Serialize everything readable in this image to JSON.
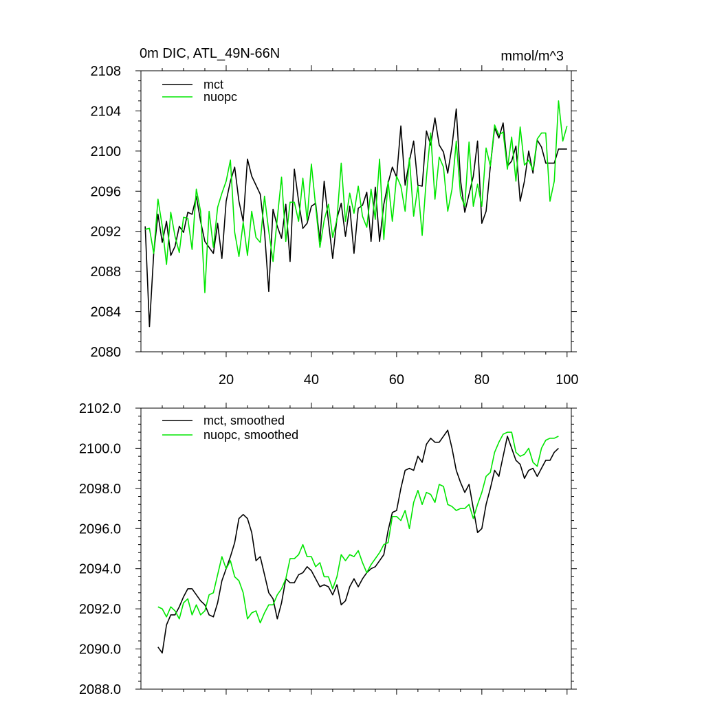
{
  "chart_data": [
    {
      "type": "line",
      "title": "0m DIC, ATL_49N-66N",
      "units": "mmol/m^3",
      "xlabel": "",
      "ylabel": "",
      "xlim": [
        0,
        101
      ],
      "ylim": [
        2080,
        2108
      ],
      "xticks": [
        20,
        40,
        60,
        80,
        100
      ],
      "yticks": [
        2080,
        2084,
        2088,
        2092,
        2096,
        2100,
        2104,
        2108
      ],
      "ytick_labels": [
        "2080",
        "2084",
        "2088",
        "2092",
        "2096",
        "2100",
        "2104",
        "2108"
      ],
      "legend_position": "top-left",
      "series": [
        {
          "name": "mct",
          "color": "#000000",
          "x": [
            1,
            2,
            3,
            4,
            5,
            6,
            7,
            8,
            9,
            10,
            11,
            12,
            13,
            14,
            15,
            16,
            17,
            18,
            19,
            20,
            21,
            22,
            23,
            24,
            25,
            26,
            27,
            28,
            29,
            30,
            31,
            32,
            33,
            34,
            35,
            36,
            37,
            38,
            39,
            40,
            41,
            42,
            43,
            44,
            45,
            46,
            47,
            48,
            49,
            50,
            51,
            52,
            53,
            54,
            55,
            56,
            57,
            58,
            59,
            60,
            61,
            62,
            63,
            64,
            65,
            66,
            67,
            68,
            69,
            70,
            71,
            72,
            73,
            74,
            75,
            76,
            77,
            78,
            79,
            80,
            81,
            82,
            83,
            84,
            85,
            86,
            87,
            88,
            89,
            90,
            91,
            92,
            93,
            94,
            95,
            96,
            97,
            98,
            99,
            100
          ],
          "values": [
            2092.5,
            2082.5,
            2089.8,
            2093.7,
            2090.9,
            2093.0,
            2089.6,
            2090.5,
            2092.5,
            2091.9,
            2093.9,
            2093.7,
            2095.5,
            2093.0,
            2091.0,
            2090.4,
            2089.8,
            2092.8,
            2089.3,
            2095.0,
            2097.0,
            2098.4,
            2095.0,
            2093.0,
            2099.2,
            2097.5,
            2096.6,
            2095.7,
            2092.0,
            2086.0,
            2094.2,
            2092.5,
            2091.3,
            2094.7,
            2089.0,
            2098.2,
            2095.0,
            2092.3,
            2092.8,
            2094.5,
            2094.8,
            2091.0,
            2097.0,
            2093.0,
            2089.3,
            2093.3,
            2094.8,
            2091.5,
            2094.5,
            2089.8,
            2094.3,
            2094.6,
            2095.9,
            2091.0,
            2096.4,
            2091.0,
            2094.7,
            2096.8,
            2098.4,
            2097.4,
            2102.5,
            2096.6,
            2099.0,
            2101.0,
            2096.6,
            2096.5,
            2102.0,
            2100.6,
            2103.3,
            2100.6,
            2099.9,
            2097.8,
            2100.5,
            2104.2,
            2097.1,
            2093.9,
            2095.7,
            2097.5,
            2101.0,
            2092.8,
            2094.0,
            2098.5,
            2102.3,
            2101.3,
            2102.8,
            2098.5,
            2099.0,
            2100.5,
            2095.0,
            2097.0,
            2100.0,
            2097.8,
            2101.1,
            2100.4,
            2098.8,
            2098.8,
            2098.8,
            2100.2,
            2100.2,
            2100.2
          ]
        },
        {
          "name": "nuopc",
          "color": "#00e600",
          "x": [
            1,
            2,
            3,
            4,
            5,
            6,
            7,
            8,
            9,
            10,
            11,
            12,
            13,
            14,
            15,
            16,
            17,
            18,
            19,
            20,
            21,
            22,
            23,
            24,
            25,
            26,
            27,
            28,
            29,
            30,
            31,
            32,
            33,
            34,
            35,
            36,
            37,
            38,
            39,
            40,
            41,
            42,
            43,
            44,
            45,
            46,
            47,
            48,
            49,
            50,
            51,
            52,
            53,
            54,
            55,
            56,
            57,
            58,
            59,
            60,
            61,
            62,
            63,
            64,
            65,
            66,
            67,
            68,
            69,
            70,
            71,
            72,
            73,
            74,
            75,
            76,
            77,
            78,
            79,
            80,
            81,
            82,
            83,
            84,
            85,
            86,
            87,
            88,
            89,
            90,
            91,
            92,
            93,
            94,
            95,
            96,
            97,
            98,
            99,
            100
          ],
          "values": [
            2092.2,
            2092.3,
            2089.8,
            2095.2,
            2092.5,
            2088.7,
            2093.9,
            2091.5,
            2089.9,
            2093.4,
            2093.3,
            2090.2,
            2096.2,
            2094.0,
            2085.9,
            2094.0,
            2090.4,
            2094.4,
            2095.8,
            2097.0,
            2099.1,
            2091.9,
            2089.5,
            2092.9,
            2089.6,
            2094.0,
            2091.4,
            2090.9,
            2095.5,
            2092.0,
            2089.0,
            2093.3,
            2097.4,
            2091.0,
            2094.9,
            2094.9,
            2093.0,
            2097.3,
            2093.1,
            2098.7,
            2094.5,
            2090.4,
            2093.1,
            2094.7,
            2091.4,
            2093.2,
            2098.8,
            2093.0,
            2095.8,
            2093.8,
            2096.5,
            2093.5,
            2092.4,
            2096.2,
            2093.2,
            2099.2,
            2091.2,
            2097.0,
            2093.0,
            2097.5,
            2096.5,
            2094.0,
            2099.3,
            2093.5,
            2096.5,
            2091.6,
            2097.4,
            2101.8,
            2095.2,
            2099.4,
            2098.4,
            2094.0,
            2096.2,
            2101.0,
            2095.6,
            2094.5,
            2100.9,
            2094.5,
            2096.7,
            2094.5,
            2100.3,
            2098.5,
            2102.6,
            2101.6,
            2101.9,
            2098.2,
            2101.4,
            2097.0,
            2102.4,
            2098.6,
            2099.1,
            2098.1,
            2101.2,
            2101.8,
            2101.8,
            2095.0,
            2097.0,
            2105.0,
            2101.0,
            2102.5
          ]
        }
      ]
    },
    {
      "type": "line",
      "title": "",
      "xlabel": "",
      "ylabel": "",
      "xlim": [
        0,
        101
      ],
      "ylim": [
        2088,
        2102
      ],
      "xticks": [
        20,
        40,
        60,
        80,
        100
      ],
      "yticks": [
        2088,
        2090,
        2092,
        2094,
        2096,
        2098,
        2100,
        2102
      ],
      "ytick_labels": [
        "2088.0",
        "2090.0",
        "2092.0",
        "2094.0",
        "2096.0",
        "2098.0",
        "2100.0",
        "2102.0"
      ],
      "legend_position": "top-left",
      "series": [
        {
          "name": "mct, smoothed",
          "color": "#000000",
          "x": [
            4,
            5,
            6,
            7,
            8,
            9,
            10,
            11,
            12,
            13,
            14,
            15,
            16,
            17,
            18,
            19,
            20,
            21,
            22,
            23,
            24,
            25,
            26,
            27,
            28,
            29,
            30,
            31,
            32,
            33,
            34,
            35,
            36,
            37,
            38,
            39,
            40,
            41,
            42,
            43,
            44,
            45,
            46,
            47,
            48,
            49,
            50,
            51,
            52,
            53,
            54,
            55,
            56,
            57,
            58,
            59,
            60,
            61,
            62,
            63,
            64,
            65,
            66,
            67,
            68,
            69,
            70,
            71,
            72,
            73,
            74,
            75,
            76,
            77,
            78,
            79,
            80,
            81,
            82,
            83,
            84,
            85,
            86,
            87,
            88,
            89,
            90,
            91,
            92,
            93,
            94,
            95,
            96,
            97,
            98
          ],
          "values": [
            2090.1,
            2089.8,
            2091.2,
            2091.7,
            2091.7,
            2092.1,
            2092.6,
            2093.0,
            2093.0,
            2092.7,
            2092.4,
            2092.2,
            2091.7,
            2091.6,
            2092.3,
            2093.4,
            2094.0,
            2094.6,
            2095.3,
            2096.5,
            2096.7,
            2096.5,
            2095.8,
            2094.4,
            2094.6,
            2093.7,
            2092.8,
            2092.5,
            2091.5,
            2092.3,
            2093.5,
            2093.3,
            2093.3,
            2093.7,
            2093.8,
            2094.1,
            2093.9,
            2093.5,
            2093.1,
            2093.2,
            2093.1,
            2092.7,
            2093.2,
            2092.2,
            2092.4,
            2093.1,
            2093.5,
            2093.1,
            2093.5,
            2093.8,
            2094.0,
            2094.1,
            2094.4,
            2094.7,
            2095.9,
            2096.8,
            2096.9,
            2098.0,
            2098.9,
            2099.0,
            2098.9,
            2099.6,
            2099.3,
            2100.2,
            2100.5,
            2100.3,
            2100.3,
            2100.6,
            2100.9,
            2100.0,
            2098.9,
            2098.3,
            2097.8,
            2098.2,
            2097.0,
            2095.8,
            2096.0,
            2097.2,
            2098.0,
            2098.9,
            2098.6,
            2099.6,
            2100.6,
            2100.0,
            2099.4,
            2099.2,
            2098.5,
            2098.9,
            2099.0,
            2098.6,
            2099.0,
            2099.4,
            2099.4,
            2099.8,
            2100.0
          ]
        },
        {
          "name": "nuopc, smoothed",
          "color": "#00e600",
          "x": [
            4,
            5,
            6,
            7,
            8,
            9,
            10,
            11,
            12,
            13,
            14,
            15,
            16,
            17,
            18,
            19,
            20,
            21,
            22,
            23,
            24,
            25,
            26,
            27,
            28,
            29,
            30,
            31,
            32,
            33,
            34,
            35,
            36,
            37,
            38,
            39,
            40,
            41,
            42,
            43,
            44,
            45,
            46,
            47,
            48,
            49,
            50,
            51,
            52,
            53,
            54,
            55,
            56,
            57,
            58,
            59,
            60,
            61,
            62,
            63,
            64,
            65,
            66,
            67,
            68,
            69,
            70,
            71,
            72,
            73,
            74,
            75,
            76,
            77,
            78,
            79,
            80,
            81,
            82,
            83,
            84,
            85,
            86,
            87,
            88,
            89,
            90,
            91,
            92,
            93,
            94,
            95,
            96,
            97,
            98
          ],
          "values": [
            2092.1,
            2092.0,
            2091.6,
            2092.1,
            2091.9,
            2091.5,
            2092.3,
            2092.5,
            2091.7,
            2092.2,
            2091.7,
            2091.9,
            2092.7,
            2092.8,
            2093.7,
            2094.6,
            2094.0,
            2094.4,
            2093.6,
            2093.4,
            2092.8,
            2091.5,
            2091.8,
            2091.9,
            2091.3,
            2091.8,
            2092.2,
            2092.2,
            2092.7,
            2093.0,
            2093.5,
            2094.5,
            2094.5,
            2094.7,
            2095.2,
            2094.6,
            2094.6,
            2094.1,
            2094.3,
            2093.6,
            2093.6,
            2093.0,
            2093.6,
            2094.7,
            2094.4,
            2094.7,
            2094.6,
            2094.9,
            2094.3,
            2093.8,
            2094.2,
            2094.5,
            2094.8,
            2095.2,
            2095.3,
            2096.6,
            2096.6,
            2096.4,
            2096.9,
            2096.0,
            2097.3,
            2097.9,
            2097.2,
            2097.8,
            2097.7,
            2097.3,
            2098.2,
            2098.1,
            2097.2,
            2097.1,
            2096.9,
            2097.0,
            2097.0,
            2097.2,
            2096.5,
            2097.2,
            2097.8,
            2098.6,
            2098.8,
            2099.8,
            2100.3,
            2100.7,
            2100.8,
            2100.8,
            2099.8,
            2099.6,
            2099.7,
            2100.0,
            2099.3,
            2099.1,
            2100.0,
            2100.4,
            2100.5,
            2100.5,
            2100.6
          ]
        }
      ]
    }
  ]
}
